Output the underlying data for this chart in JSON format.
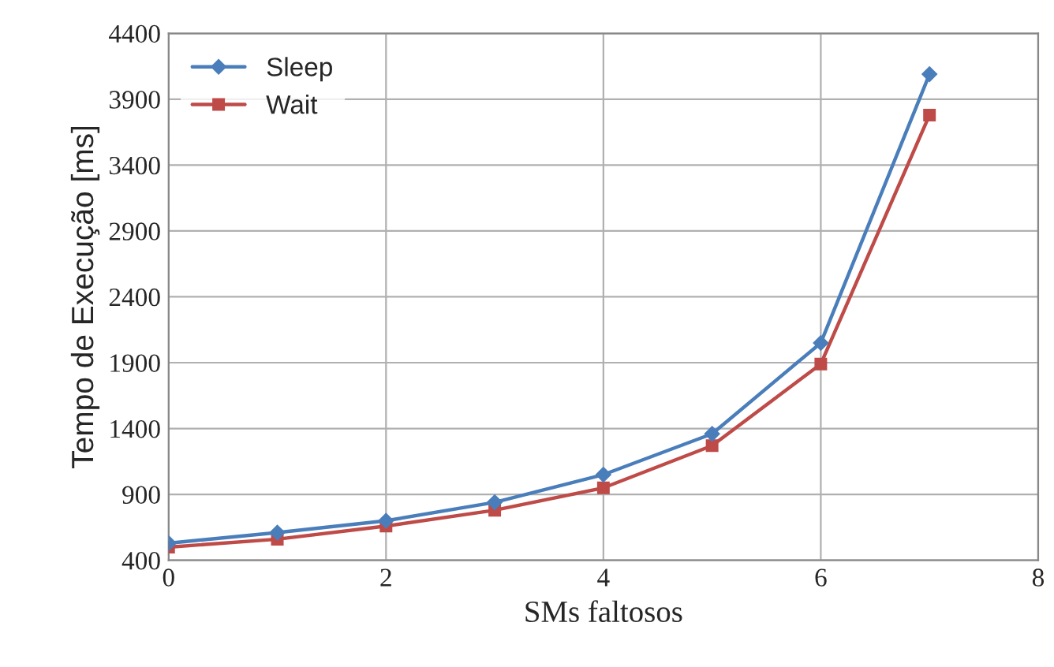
{
  "chart_data": {
    "type": "line",
    "xlabel": "SMs faltosos",
    "ylabel": "Tempo de Execução [ms]",
    "x": [
      0,
      1,
      2,
      3,
      4,
      5,
      6,
      7
    ],
    "series": [
      {
        "name": "Sleep",
        "color": "#4a7ebb",
        "marker": "diamond",
        "values": [
          530,
          610,
          700,
          840,
          1050,
          1360,
          2050,
          4090
        ]
      },
      {
        "name": "Wait",
        "color": "#be4b48",
        "marker": "square",
        "values": [
          500,
          560,
          660,
          780,
          950,
          1270,
          1890,
          3780
        ]
      }
    ],
    "xlim": [
      0,
      8
    ],
    "xticks": [
      0,
      2,
      4,
      6,
      8
    ],
    "ylim": [
      400,
      4400
    ],
    "yticks": [
      400,
      900,
      1400,
      1900,
      2400,
      2900,
      3400,
      3900,
      4400
    ],
    "grid": true,
    "legend": "top left",
    "line_style": "solid"
  }
}
